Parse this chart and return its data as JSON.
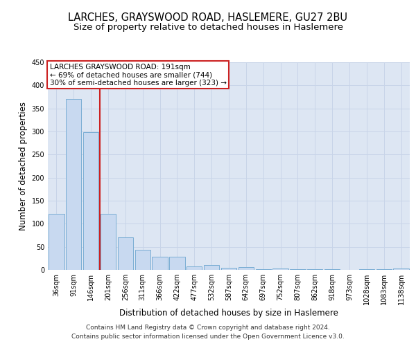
{
  "title": "LARCHES, GRAYSWOOD ROAD, HASLEMERE, GU27 2BU",
  "subtitle": "Size of property relative to detached houses in Haslemere",
  "xlabel": "Distribution of detached houses by size in Haslemere",
  "ylabel": "Number of detached properties",
  "categories": [
    "36sqm",
    "91sqm",
    "146sqm",
    "201sqm",
    "256sqm",
    "311sqm",
    "366sqm",
    "422sqm",
    "477sqm",
    "532sqm",
    "587sqm",
    "642sqm",
    "697sqm",
    "752sqm",
    "807sqm",
    "862sqm",
    "918sqm",
    "973sqm",
    "1028sqm",
    "1083sqm",
    "1138sqm"
  ],
  "values": [
    122,
    370,
    298,
    122,
    70,
    43,
    29,
    29,
    8,
    10,
    5,
    6,
    2,
    3,
    1,
    2,
    1,
    0,
    2,
    1,
    3
  ],
  "bar_color": "#c8d9f0",
  "bar_edge_color": "#7aadd4",
  "grid_color": "#c8d4e8",
  "background_color": "#dde6f3",
  "vline_color": "#cc2222",
  "vline_pos": 2.5,
  "annotation_text": "LARCHES GRAYSWOOD ROAD: 191sqm\n← 69% of detached houses are smaller (744)\n30% of semi-detached houses are larger (323) →",
  "annotation_box_color": "#ffffff",
  "annotation_box_edge": "#cc2222",
  "ylim": [
    0,
    450
  ],
  "yticks": [
    0,
    50,
    100,
    150,
    200,
    250,
    300,
    350,
    400,
    450
  ],
  "footer_line1": "Contains HM Land Registry data © Crown copyright and database right 2024.",
  "footer_line2": "Contains public sector information licensed under the Open Government Licence v3.0.",
  "title_fontsize": 10.5,
  "subtitle_fontsize": 9.5,
  "tick_fontsize": 7,
  "ylabel_fontsize": 8.5,
  "xlabel_fontsize": 8.5,
  "annotation_fontsize": 7.5,
  "footer_fontsize": 6.5
}
